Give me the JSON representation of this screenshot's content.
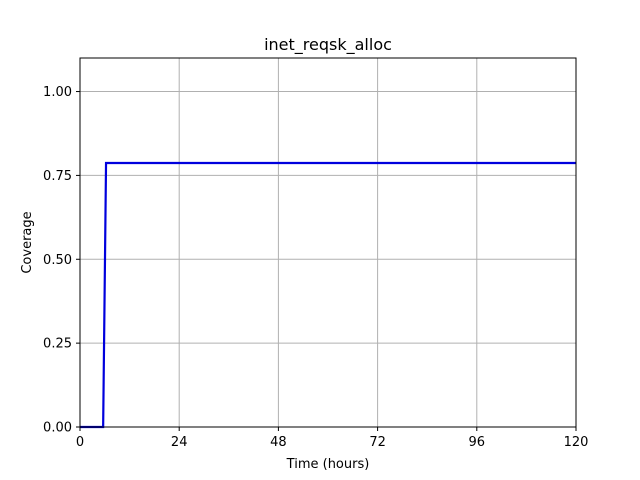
{
  "chart_data": {
    "type": "line",
    "title": "inet_reqsk_alloc",
    "xlabel": "Time (hours)",
    "ylabel": "Coverage",
    "xlim": [
      0,
      120
    ],
    "ylim": [
      0,
      1.1
    ],
    "x_ticks": [
      0,
      24,
      48,
      72,
      96,
      120
    ],
    "x_tick_labels": [
      "0",
      "24",
      "48",
      "72",
      "96",
      "120"
    ],
    "y_ticks": [
      0,
      0.25,
      0.5,
      0.75,
      1.0
    ],
    "y_tick_labels": [
      "0.00",
      "0.25",
      "0.50",
      "0.75",
      "1.00"
    ],
    "grid": true,
    "legend": "none",
    "series": [
      {
        "color": "#0000dd",
        "x": [
          0,
          5.6,
          6.3,
          120
        ],
        "y": [
          0,
          0,
          0.787,
          0.787
        ]
      }
    ]
  }
}
